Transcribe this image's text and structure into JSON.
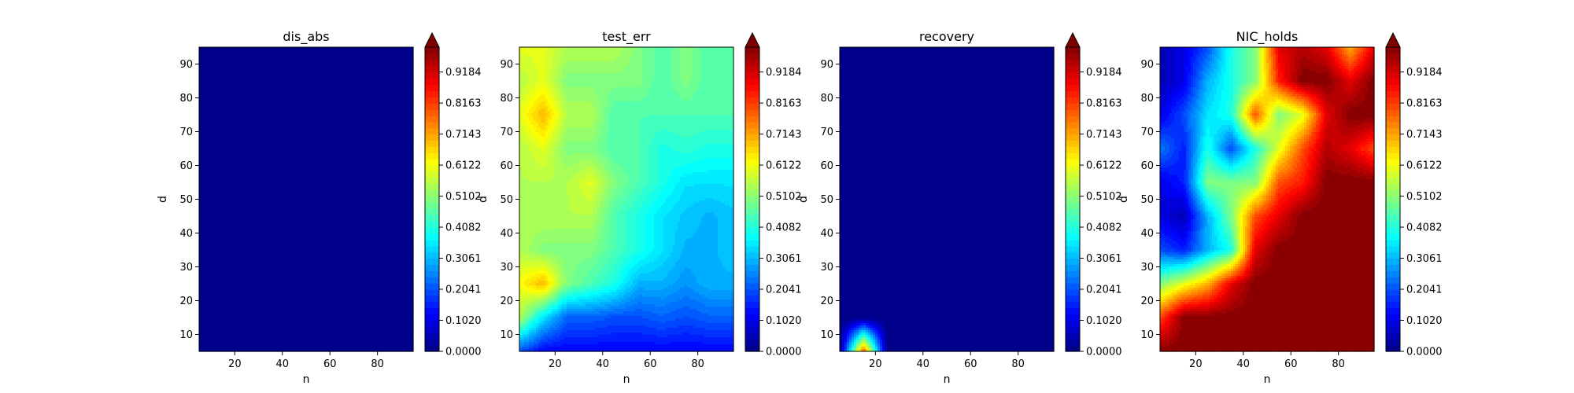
{
  "chart_data": [
    {
      "type": "heatmap",
      "title": "dis_abs",
      "xlabel": "n",
      "ylabel": "d",
      "x": [
        5,
        15,
        25,
        35,
        45,
        55,
        65,
        75,
        85,
        95
      ],
      "y": [
        5,
        15,
        25,
        35,
        45,
        55,
        65,
        75,
        85,
        95
      ],
      "xticks": [
        20,
        40,
        60,
        80
      ],
      "yticks": [
        10,
        20,
        30,
        40,
        50,
        60,
        70,
        80,
        90
      ],
      "xlim": [
        5,
        95
      ],
      "ylim": [
        5,
        95
      ],
      "z": [
        [
          0,
          0,
          0,
          0,
          0,
          0,
          0,
          0,
          0,
          0
        ],
        [
          0,
          0,
          0,
          0,
          0,
          0,
          0,
          0,
          0,
          0
        ],
        [
          0,
          0,
          0,
          0,
          0,
          0,
          0,
          0,
          0,
          0
        ],
        [
          0,
          0,
          0,
          0,
          0,
          0,
          0,
          0,
          0,
          0
        ],
        [
          0,
          0,
          0,
          0,
          0,
          0,
          0,
          0,
          0,
          0
        ],
        [
          0,
          0,
          0,
          0,
          0,
          0,
          0,
          0,
          0,
          0
        ],
        [
          0,
          0,
          0,
          0,
          0,
          0,
          0,
          0,
          0,
          0
        ],
        [
          0,
          0,
          0,
          0,
          0,
          0,
          0,
          0,
          0,
          0
        ],
        [
          0,
          0,
          0,
          0,
          0,
          0,
          0,
          0,
          0,
          0
        ],
        [
          0,
          0,
          0,
          0,
          0,
          0,
          0,
          0,
          0,
          0
        ]
      ],
      "colorbar": {
        "colormap": "jet",
        "range": [
          0,
          1
        ],
        "extend": "max",
        "ticks": [
          "0.0000",
          "0.1020",
          "0.2041",
          "0.3061",
          "0.4082",
          "0.5102",
          "0.6122",
          "0.7143",
          "0.8163",
          "0.9184"
        ]
      }
    },
    {
      "type": "heatmap",
      "title": "test_err",
      "xlabel": "n",
      "ylabel": "d",
      "x": [
        5,
        15,
        25,
        35,
        45,
        55,
        65,
        75,
        85,
        95
      ],
      "y": [
        5,
        15,
        25,
        35,
        45,
        55,
        65,
        75,
        85,
        95
      ],
      "xticks": [
        20,
        40,
        60,
        80
      ],
      "yticks": [
        10,
        20,
        30,
        40,
        50,
        60,
        70,
        80,
        90
      ],
      "xlim": [
        5,
        95
      ],
      "ylim": [
        5,
        95
      ],
      "z": [
        [
          0.2,
          0.12,
          0.12,
          0.12,
          0.12,
          0.12,
          0.12,
          0.12,
          0.12,
          0.12
        ],
        [
          0.55,
          0.35,
          0.22,
          0.22,
          0.2,
          0.2,
          0.22,
          0.2,
          0.22,
          0.22
        ],
        [
          0.62,
          0.7,
          0.5,
          0.45,
          0.4,
          0.3,
          0.3,
          0.27,
          0.3,
          0.3
        ],
        [
          0.55,
          0.5,
          0.5,
          0.5,
          0.45,
          0.4,
          0.35,
          0.3,
          0.3,
          0.32
        ],
        [
          0.55,
          0.55,
          0.55,
          0.55,
          0.45,
          0.4,
          0.35,
          0.32,
          0.3,
          0.32
        ],
        [
          0.55,
          0.55,
          0.55,
          0.6,
          0.5,
          0.45,
          0.4,
          0.35,
          0.35,
          0.35
        ],
        [
          0.55,
          0.6,
          0.5,
          0.5,
          0.45,
          0.45,
          0.4,
          0.42,
          0.4,
          0.4
        ],
        [
          0.6,
          0.7,
          0.55,
          0.55,
          0.45,
          0.45,
          0.45,
          0.45,
          0.45,
          0.45
        ],
        [
          0.55,
          0.6,
          0.5,
          0.5,
          0.5,
          0.5,
          0.45,
          0.5,
          0.45,
          0.45
        ],
        [
          0.6,
          0.6,
          0.55,
          0.55,
          0.55,
          0.5,
          0.45,
          0.5,
          0.45,
          0.45
        ]
      ],
      "colorbar": {
        "colormap": "jet",
        "range": [
          0,
          1
        ],
        "extend": "max",
        "ticks": [
          "0.0000",
          "0.1020",
          "0.2041",
          "0.3061",
          "0.4082",
          "0.5102",
          "0.6122",
          "0.7143",
          "0.8163",
          "0.9184"
        ]
      }
    },
    {
      "type": "heatmap",
      "title": "recovery",
      "xlabel": "n",
      "ylabel": "d",
      "x": [
        5,
        15,
        25,
        35,
        45,
        55,
        65,
        75,
        85,
        95
      ],
      "y": [
        5,
        15,
        25,
        35,
        45,
        55,
        65,
        75,
        85,
        95
      ],
      "xticks": [
        20,
        40,
        60,
        80
      ],
      "yticks": [
        10,
        20,
        30,
        40,
        50,
        60,
        70,
        80,
        90
      ],
      "xlim": [
        5,
        95
      ],
      "ylim": [
        5,
        95
      ],
      "z": [
        [
          0,
          0.8,
          0,
          0,
          0,
          0,
          0,
          0,
          0,
          0
        ],
        [
          0,
          0,
          0,
          0,
          0,
          0,
          0,
          0,
          0,
          0
        ],
        [
          0,
          0,
          0,
          0,
          0,
          0,
          0,
          0,
          0,
          0
        ],
        [
          0,
          0,
          0,
          0,
          0,
          0,
          0,
          0,
          0,
          0
        ],
        [
          0,
          0,
          0,
          0,
          0,
          0,
          0,
          0,
          0,
          0
        ],
        [
          0,
          0,
          0,
          0,
          0,
          0,
          0,
          0,
          0,
          0
        ],
        [
          0,
          0,
          0,
          0,
          0,
          0,
          0,
          0,
          0,
          0
        ],
        [
          0,
          0,
          0,
          0,
          0,
          0,
          0,
          0,
          0,
          0
        ],
        [
          0,
          0,
          0,
          0,
          0,
          0,
          0,
          0,
          0,
          0
        ],
        [
          0,
          0,
          0,
          0,
          0,
          0,
          0,
          0,
          0,
          0
        ]
      ],
      "colorbar": {
        "colormap": "jet",
        "range": [
          0,
          1
        ],
        "extend": "max",
        "ticks": [
          "0.0000",
          "0.1020",
          "0.2041",
          "0.3061",
          "0.4082",
          "0.5102",
          "0.6122",
          "0.7143",
          "0.8163",
          "0.9184"
        ]
      }
    },
    {
      "type": "heatmap",
      "title": "NIC_holds",
      "xlabel": "n",
      "ylabel": "d",
      "x": [
        5,
        15,
        25,
        35,
        45,
        55,
        65,
        75,
        85,
        95
      ],
      "y": [
        5,
        15,
        25,
        35,
        45,
        55,
        65,
        75,
        85,
        95
      ],
      "xticks": [
        20,
        40,
        60,
        80
      ],
      "yticks": [
        10,
        20,
        30,
        40,
        50,
        60,
        70,
        80,
        90
      ],
      "xlim": [
        5,
        95
      ],
      "ylim": [
        5,
        95
      ],
      "z": [
        [
          1.0,
          1.0,
          1.0,
          1.0,
          1.0,
          1.0,
          1.0,
          1.0,
          1.0,
          1.0
        ],
        [
          0.8,
          1.0,
          1.0,
          1.0,
          1.0,
          1.0,
          1.0,
          1.0,
          1.0,
          1.0
        ],
        [
          0.5,
          0.6,
          0.7,
          0.9,
          1.0,
          1.0,
          1.0,
          1.0,
          1.0,
          1.0
        ],
        [
          0.2,
          0.15,
          0.3,
          0.4,
          0.9,
          1.0,
          1.0,
          1.0,
          1.0,
          1.0
        ],
        [
          0.1,
          0.05,
          0.3,
          0.5,
          0.8,
          0.9,
          1.0,
          1.0,
          1.0,
          1.0
        ],
        [
          0.1,
          0.15,
          0.5,
          0.5,
          0.5,
          0.8,
          0.85,
          1.0,
          1.0,
          1.0
        ],
        [
          0.25,
          0.15,
          0.4,
          0.2,
          0.4,
          0.6,
          0.8,
          0.95,
          0.9,
          0.8
        ],
        [
          0.1,
          0.2,
          0.35,
          0.4,
          0.8,
          0.5,
          0.6,
          0.9,
          1.0,
          1.0
        ],
        [
          0.05,
          0.1,
          0.3,
          0.4,
          0.5,
          0.85,
          1.0,
          1.0,
          0.9,
          1.0
        ],
        [
          0.05,
          0.1,
          0.2,
          0.4,
          0.5,
          0.9,
          0.95,
          0.9,
          0.7,
          0.9
        ]
      ],
      "colorbar": {
        "colormap": "jet",
        "range": [
          0,
          1
        ],
        "extend": "max",
        "ticks": [
          "0.0000",
          "0.1020",
          "0.2041",
          "0.3061",
          "0.4082",
          "0.5102",
          "0.6122",
          "0.7143",
          "0.8163",
          "0.9184"
        ]
      }
    }
  ]
}
